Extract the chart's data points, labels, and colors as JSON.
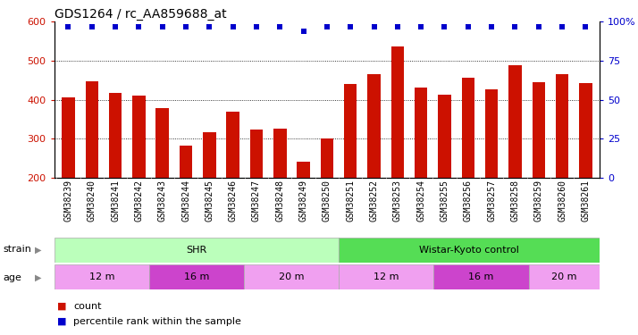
{
  "title": "GDS1264 / rc_AA859688_at",
  "samples": [
    "GSM38239",
    "GSM38240",
    "GSM38241",
    "GSM38242",
    "GSM38243",
    "GSM38244",
    "GSM38245",
    "GSM38246",
    "GSM38247",
    "GSM38248",
    "GSM38249",
    "GSM38250",
    "GSM38251",
    "GSM38252",
    "GSM38253",
    "GSM38254",
    "GSM38255",
    "GSM38256",
    "GSM38257",
    "GSM38258",
    "GSM38259",
    "GSM38260",
    "GSM38261"
  ],
  "counts": [
    406,
    447,
    418,
    410,
    378,
    283,
    317,
    370,
    323,
    325,
    240,
    300,
    440,
    465,
    537,
    432,
    413,
    457,
    427,
    488,
    446,
    465,
    443
  ],
  "percentile_ranks": [
    97,
    97,
    97,
    97,
    97,
    97,
    97,
    97,
    97,
    97,
    94,
    97,
    97,
    97,
    97,
    97,
    97,
    97,
    97,
    97,
    97,
    97,
    97
  ],
  "bar_color": "#cc1100",
  "dot_color": "#0000cc",
  "ylim_left": [
    200,
    600
  ],
  "ylim_right": [
    0,
    100
  ],
  "yticks_left": [
    200,
    300,
    400,
    500,
    600
  ],
  "yticks_right": [
    0,
    25,
    50,
    75,
    100
  ],
  "ytick_labels_right": [
    "0",
    "25",
    "50",
    "75",
    "100%"
  ],
  "grid_lines": [
    300,
    400,
    500
  ],
  "strain_groups": [
    {
      "label": "SHR",
      "start": 0,
      "end": 12,
      "color": "#bbffbb"
    },
    {
      "label": "Wistar-Kyoto control",
      "start": 12,
      "end": 23,
      "color": "#55dd55"
    }
  ],
  "age_groups": [
    {
      "label": "12 m",
      "start": 0,
      "end": 4,
      "color": "#f0a0f0"
    },
    {
      "label": "16 m",
      "start": 4,
      "end": 8,
      "color": "#cc44cc"
    },
    {
      "label": "20 m",
      "start": 8,
      "end": 12,
      "color": "#f0a0f0"
    },
    {
      "label": "12 m",
      "start": 12,
      "end": 16,
      "color": "#f0a0f0"
    },
    {
      "label": "16 m",
      "start": 16,
      "end": 20,
      "color": "#cc44cc"
    },
    {
      "label": "20 m",
      "start": 20,
      "end": 23,
      "color": "#f0a0f0"
    }
  ],
  "legend_items": [
    {
      "label": "count",
      "color": "#cc1100"
    },
    {
      "label": "percentile rank within the sample",
      "color": "#0000cc"
    }
  ],
  "strain_label": "strain",
  "age_label": "age",
  "bg_color": "#ffffff",
  "axis_label_color_left": "#cc1100",
  "axis_label_color_right": "#0000cc",
  "title_fontsize": 10,
  "tick_fontsize": 7,
  "bar_width": 0.55,
  "xtick_bg": "#d8d8d8",
  "arrow_color": "#888888"
}
